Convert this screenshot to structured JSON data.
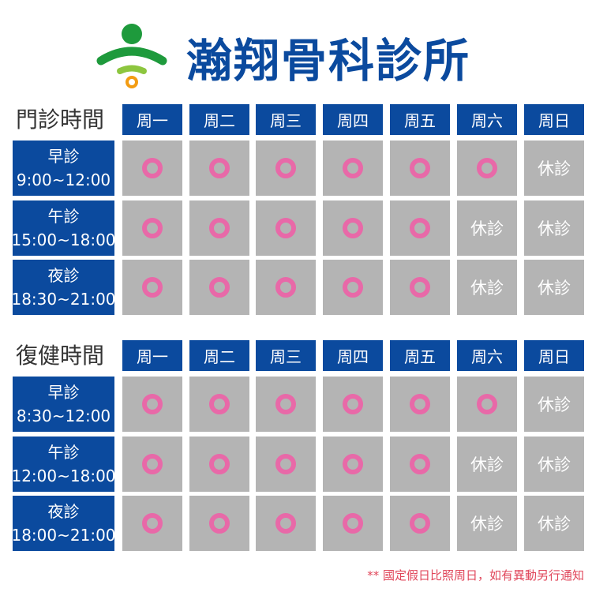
{
  "header": {
    "title": "瀚翔骨科診所",
    "logo": "clinic-logo"
  },
  "colors": {
    "brand": "#0b4a9e",
    "cell": "#b4b4b4",
    "open_mark": "#e869a8",
    "note": "#e0465a"
  },
  "days": [
    "周一",
    "周二",
    "周三",
    "周四",
    "周五",
    "周六",
    "周日"
  ],
  "open_symbol": "circle-icon",
  "closed_label": "休診",
  "sections": [
    {
      "title": "門診時間",
      "rows": [
        {
          "name": "早診",
          "time": "9:00~12:00",
          "open": [
            true,
            true,
            true,
            true,
            true,
            true,
            false
          ]
        },
        {
          "name": "午診",
          "time": "15:00~18:00",
          "open": [
            true,
            true,
            true,
            true,
            true,
            false,
            false
          ]
        },
        {
          "name": "夜診",
          "time": "18:30~21:00",
          "open": [
            true,
            true,
            true,
            true,
            true,
            false,
            false
          ]
        }
      ]
    },
    {
      "title": "復健時間",
      "rows": [
        {
          "name": "早診",
          "time": "8:30~12:00",
          "open": [
            true,
            true,
            true,
            true,
            true,
            true,
            false
          ]
        },
        {
          "name": "午診",
          "time": "12:00~18:00",
          "open": [
            true,
            true,
            true,
            true,
            true,
            false,
            false
          ]
        },
        {
          "name": "夜診",
          "time": "18:00~21:00",
          "open": [
            true,
            true,
            true,
            true,
            true,
            false,
            false
          ]
        }
      ]
    }
  ],
  "footer_note": "** 國定假日比照周日，如有異動另行通知"
}
